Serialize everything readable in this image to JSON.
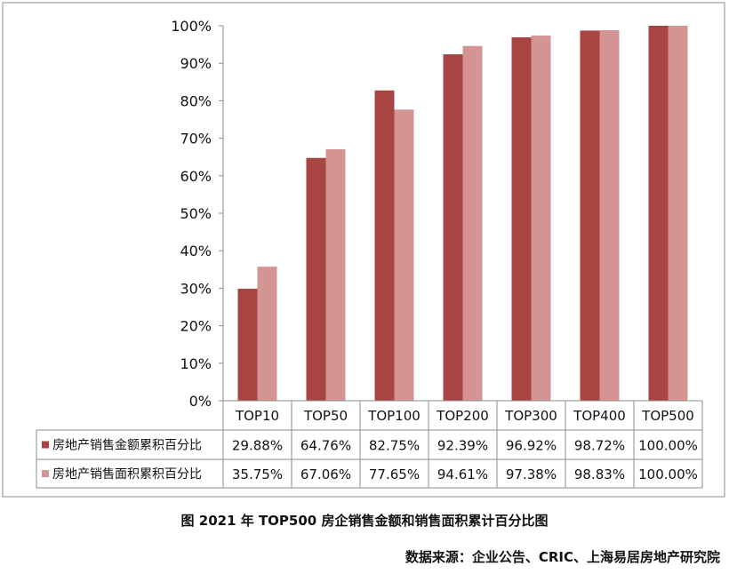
{
  "chart_data": {
    "type": "bar",
    "categories": [
      "TOP10",
      "TOP50",
      "TOP100",
      "TOP200",
      "TOP300",
      "TOP400",
      "TOP500"
    ],
    "series": [
      {
        "name": "房地产销售金额累积百分比",
        "values": [
          29.88,
          64.76,
          82.75,
          92.39,
          96.92,
          98.72,
          100.0
        ],
        "labels": [
          "29.88%",
          "64.76%",
          "82.75%",
          "92.39%",
          "96.92%",
          "98.72%",
          "100.00%"
        ],
        "color": "#a84442"
      },
      {
        "name": "房地产销售面积累积百分比",
        "values": [
          35.75,
          67.06,
          77.65,
          94.61,
          97.38,
          98.83,
          100.0
        ],
        "labels": [
          "35.75%",
          "67.06%",
          "77.65%",
          "94.61%",
          "97.38%",
          "98.83%",
          "100.00%"
        ],
        "color": "#d49493"
      }
    ],
    "ylim": [
      0,
      100
    ],
    "yticks": [
      "0%",
      "10%",
      "20%",
      "30%",
      "40%",
      "50%",
      "60%",
      "70%",
      "80%",
      "90%",
      "100%"
    ],
    "ytick_values": [
      0,
      10,
      20,
      30,
      40,
      50,
      60,
      70,
      80,
      90,
      100
    ],
    "grid": false,
    "legend": "data-table"
  },
  "caption": "图  2021 年 TOP500 房企销售金额和销售面积累计百分比图",
  "source": "数据来源：企业公告、CRIC、上海易居房地产研究院"
}
